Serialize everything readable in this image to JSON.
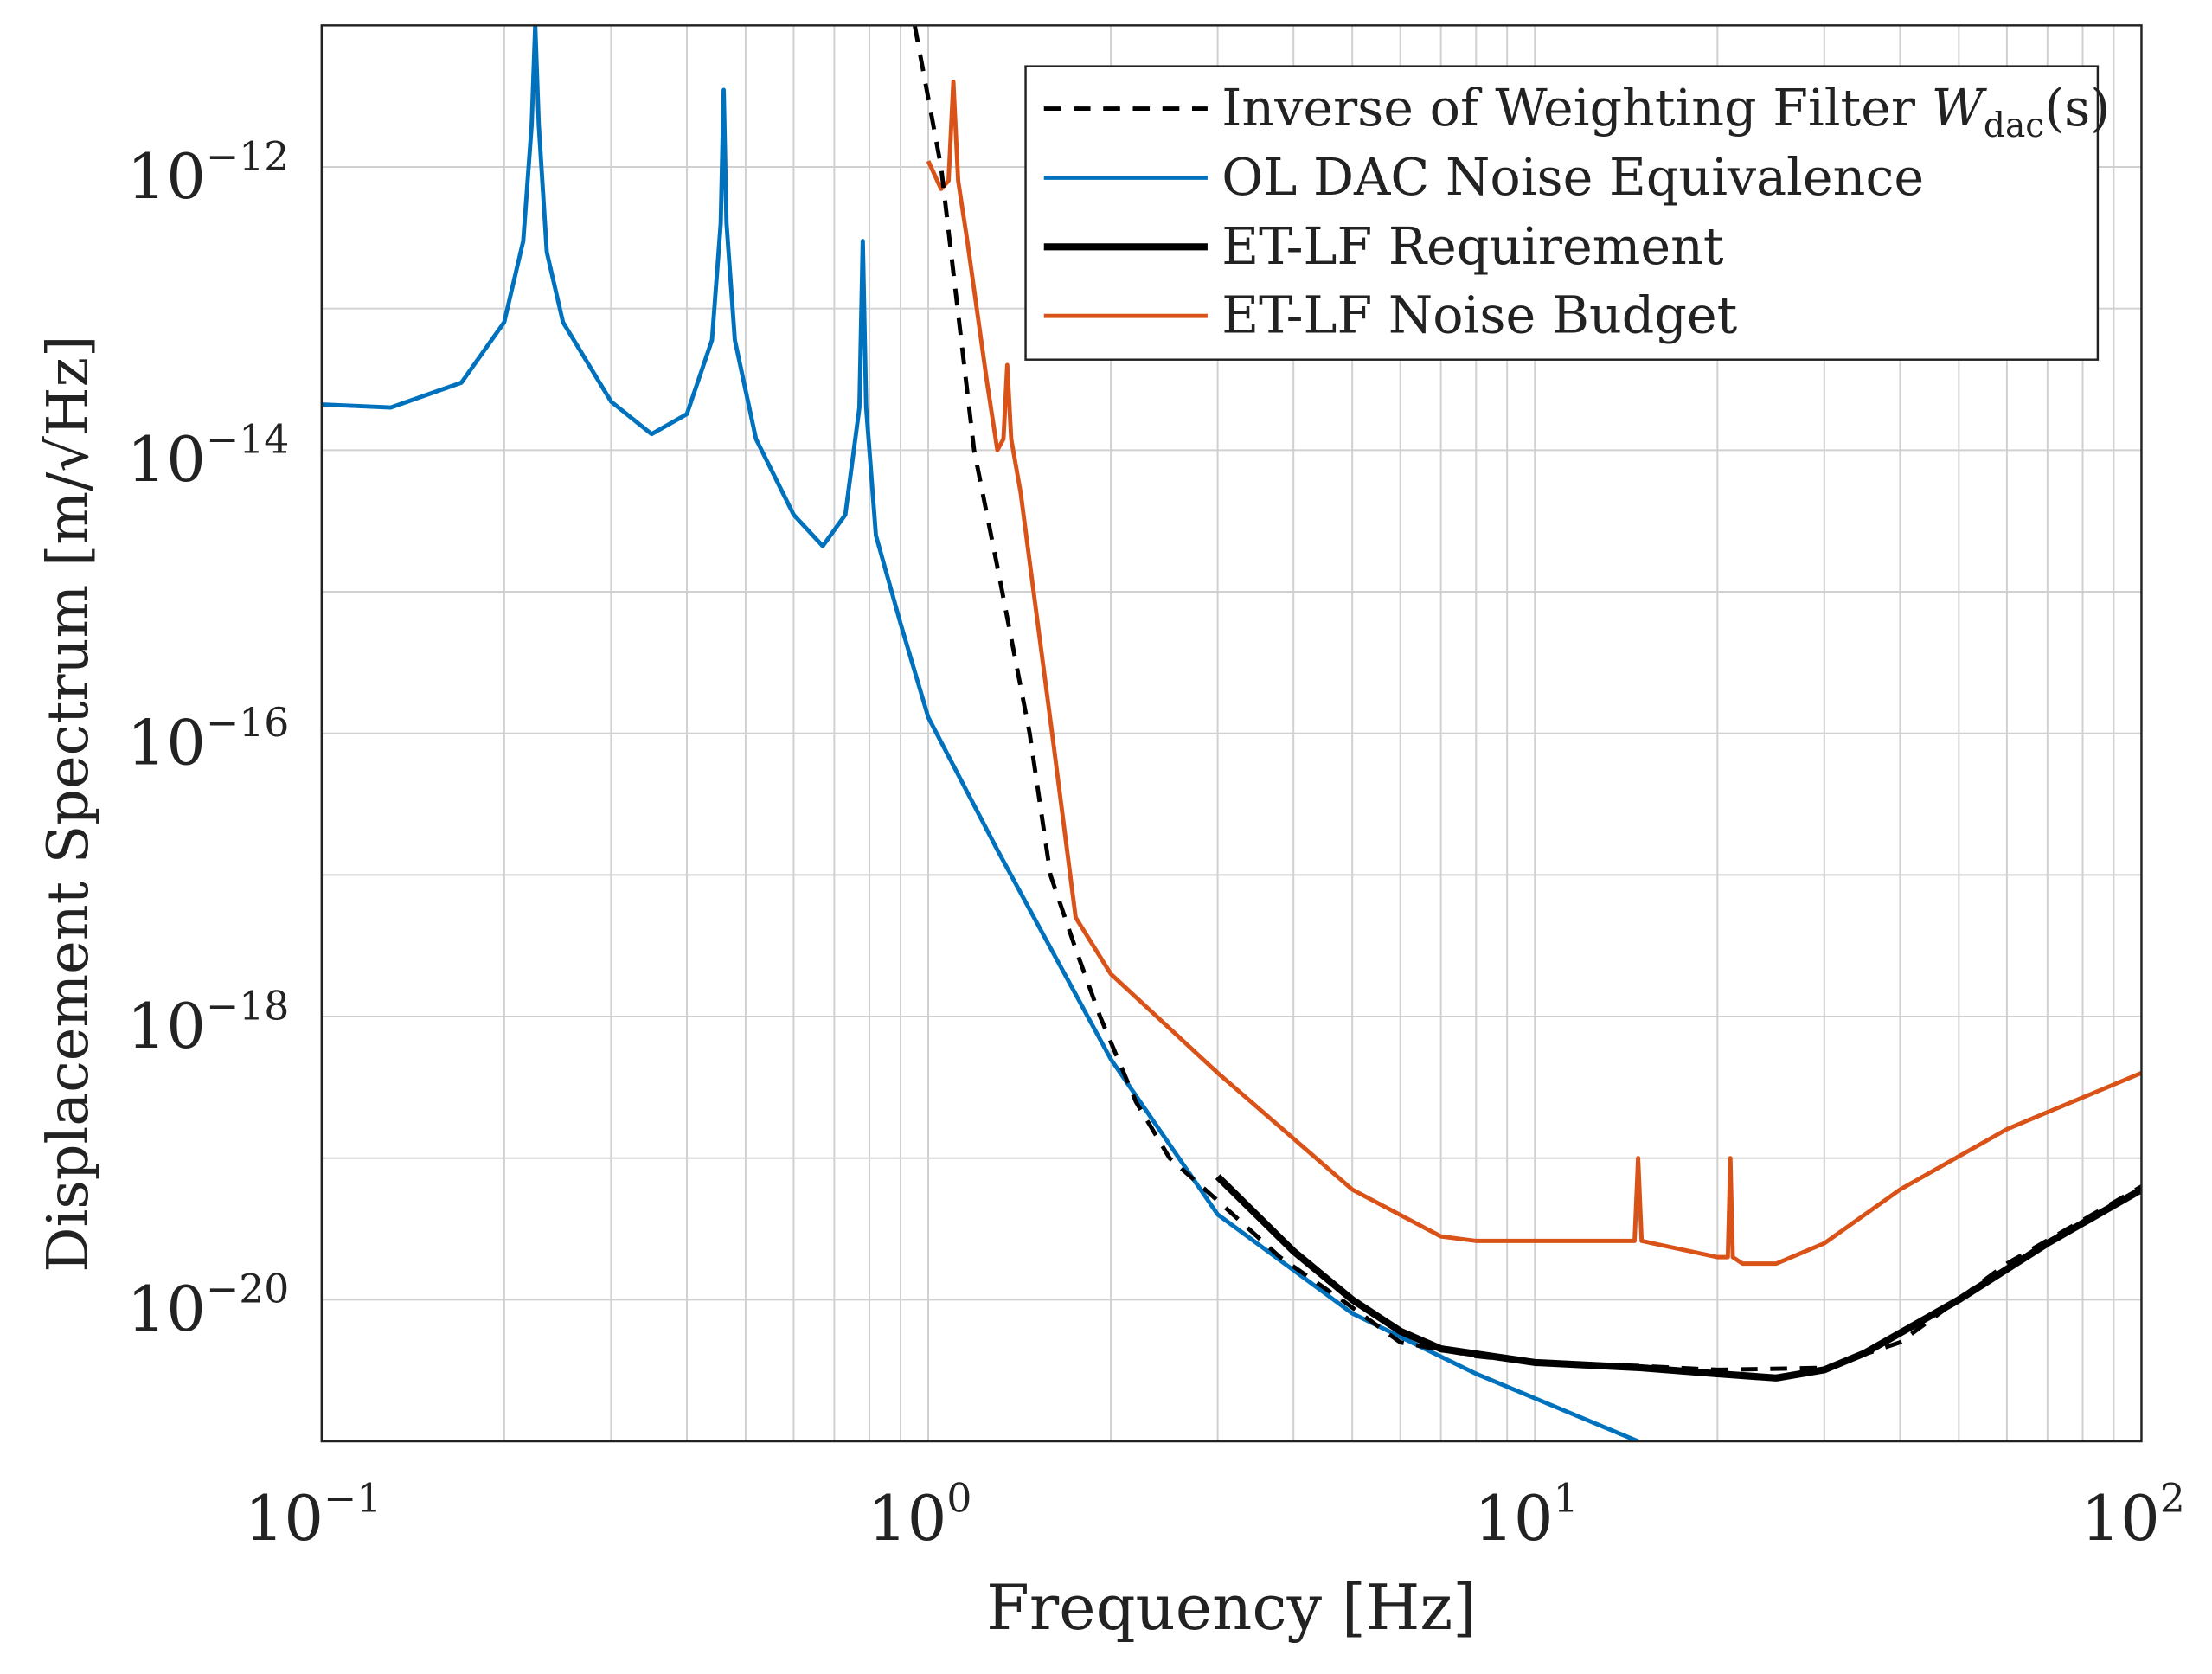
{
  "chart_data": {
    "type": "line",
    "xscale": "log",
    "yscale": "log",
    "xlabel": "Frequency [Hz]",
    "ylabel": "Displacement Spectrum [m/√Hz]",
    "xlim": [
      0.1,
      100
    ],
    "ylim": [
      1e-21,
      1e-11
    ],
    "grid": true,
    "legend_position": "top-right",
    "x_ticks": [
      {
        "value": 0.1,
        "base": "10",
        "exp": "−1"
      },
      {
        "value": 1,
        "base": "10",
        "exp": "0"
      },
      {
        "value": 10,
        "base": "10",
        "exp": "1"
      },
      {
        "value": 100,
        "base": "10",
        "exp": "2"
      }
    ],
    "y_ticks": [
      {
        "value": 1e-12,
        "base": "10",
        "exp": "−12"
      },
      {
        "value": 1e-14,
        "base": "10",
        "exp": "−14"
      },
      {
        "value": 1e-16,
        "base": "10",
        "exp": "−16"
      },
      {
        "value": 1e-18,
        "base": "10",
        "exp": "−18"
      },
      {
        "value": 1e-20,
        "base": "10",
        "exp": "−20"
      }
    ],
    "series": [
      {
        "name": "Inverse of Weighting Filter W_dac(s)",
        "legend_main": "Inverse of Weighting Filter ",
        "legend_sym": "W",
        "legend_sub": "dac",
        "legend_tail": "(s)",
        "color": "#000000",
        "style": "dashed",
        "x": [
          0.95,
          1.05,
          1.19,
          1.3,
          1.47,
          1.59,
          1.75,
          1.92,
          2.2,
          2.5,
          3,
          3.8,
          4.8,
          6,
          8,
          10,
          15,
          20,
          30,
          40,
          60,
          100
        ],
        "y": [
          1e-11,
          1e-12,
          1e-14,
          1.5e-15,
          1e-16,
          1e-17,
          3e-18,
          1e-18,
          2.5e-19,
          1e-19,
          5e-20,
          2e-20,
          1e-20,
          5e-21,
          4e-21,
          3.6e-21,
          3.4e-21,
          3.2e-21,
          3.3e-21,
          5e-21,
          1.8e-20,
          6.3e-20
        ]
      },
      {
        "name": "OL DAC Noise Equivalence",
        "legend_main": "OL DAC Noise Equivalence",
        "color": "#0072BD",
        "style": "solid",
        "x": [
          0.1,
          0.13,
          0.17,
          0.2,
          0.215,
          0.222,
          0.225,
          0.228,
          0.235,
          0.25,
          0.3,
          0.35,
          0.4,
          0.44,
          0.455,
          0.46,
          0.465,
          0.48,
          0.52,
          0.6,
          0.67,
          0.73,
          0.77,
          0.78,
          0.79,
          0.82,
          0.9,
          1.0,
          1.3,
          2,
          3,
          5,
          8,
          14.8
        ],
        "y": [
          2.1e-14,
          2e-14,
          3e-14,
          8e-14,
          3e-13,
          2e-12,
          1e-11,
          2e-12,
          2.5e-13,
          8e-14,
          2.2e-14,
          1.3e-14,
          1.8e-14,
          6e-14,
          4e-13,
          3.5e-12,
          4e-13,
          6e-14,
          1.2e-14,
          3.5e-15,
          2.1e-15,
          3.5e-15,
          2e-14,
          3e-13,
          2e-14,
          2.5e-15,
          6e-16,
          1.3e-16,
          1.5e-17,
          5e-19,
          4e-20,
          8e-21,
          3e-21,
          1e-21
        ]
      },
      {
        "name": "ET-LF Requirement",
        "legend_main": "ET-LF Requirement",
        "color": "#000000",
        "style": "thick",
        "x": [
          3,
          4,
          5,
          6,
          7,
          10,
          15,
          20,
          25,
          30,
          35,
          50,
          70,
          100
        ],
        "y": [
          7.4e-20,
          2.2e-20,
          1e-20,
          6e-21,
          4.5e-21,
          3.6e-21,
          3.3e-21,
          3e-21,
          2.8e-21,
          3.2e-21,
          4.2e-21,
          1e-20,
          2.5e-20,
          6e-20
        ]
      },
      {
        "name": "ET-LF Noise Budget",
        "legend_main": "ET-LF Noise Budget",
        "color": "#D95319",
        "style": "solid",
        "x": [
          1.0,
          1.05,
          1.08,
          1.1,
          1.12,
          1.16,
          1.25,
          1.3,
          1.33,
          1.35,
          1.37,
          1.42,
          1.6,
          1.75,
          2,
          3,
          5,
          7,
          8,
          10,
          14.6,
          14.8,
          15.0,
          20,
          20.8,
          21,
          21.2,
          22,
          25,
          30,
          40,
          60,
          100
        ],
        "y": [
          1.1e-12,
          7e-13,
          8e-13,
          4e-12,
          8e-13,
          3e-13,
          3e-14,
          1e-14,
          1.2e-14,
          4e-14,
          1.2e-14,
          5e-15,
          1e-16,
          5e-18,
          2e-18,
          4e-19,
          6e-20,
          2.8e-20,
          2.6e-20,
          2.6e-20,
          2.6e-20,
          1e-19,
          2.6e-20,
          2e-20,
          2e-20,
          1e-19,
          2e-20,
          1.8e-20,
          1.8e-20,
          2.5e-20,
          6e-20,
          1.6e-19,
          4e-19
        ]
      }
    ]
  }
}
